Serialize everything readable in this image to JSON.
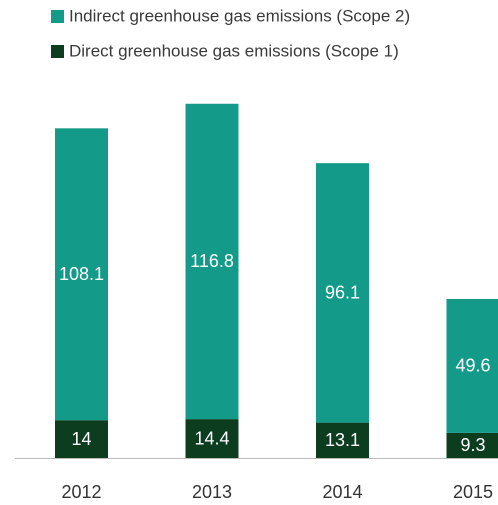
{
  "chart_data": {
    "type": "stacked_bar",
    "categories": [
      "2012",
      "2013",
      "2014",
      "2015"
    ],
    "series": [
      {
        "name": "Direct greenhouse gas emissions  (Scope 1)",
        "color": "#0d3d1f",
        "values": [
          14,
          14.4,
          13.1,
          9.3
        ]
      },
      {
        "name": "Indirect greenhouse gas emissions  (Scope 2)",
        "color": "#139a88",
        "values": [
          108.1,
          116.8,
          96.1,
          49.6
        ]
      }
    ],
    "legend": "top-left"
  }
}
